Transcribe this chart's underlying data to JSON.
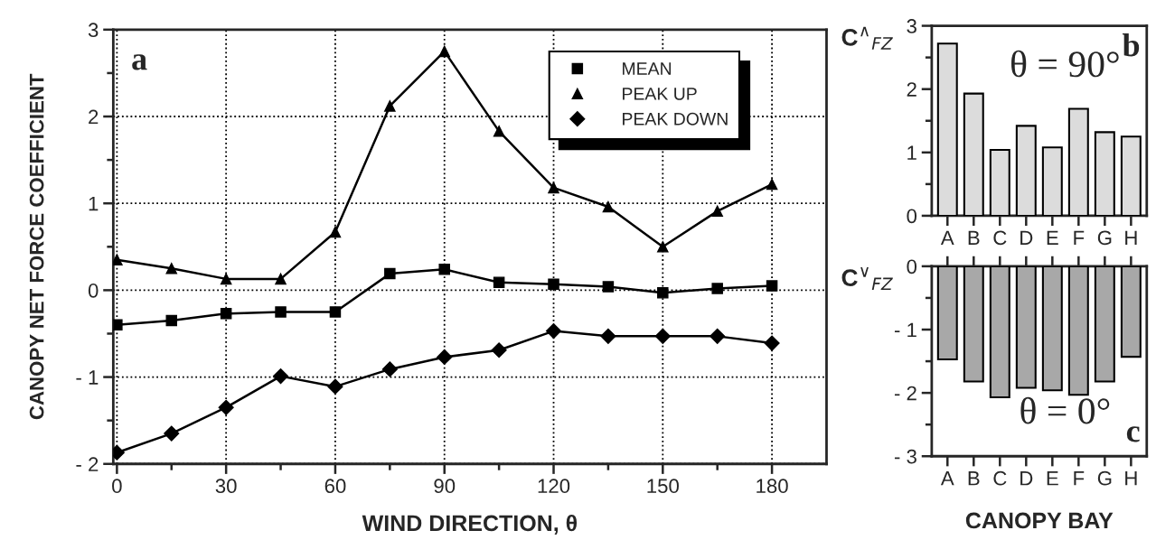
{
  "chart_data": [
    {
      "type": "line",
      "xlabel": "WIND DIRECTION, θ",
      "ylabel": "CANOPY NET FORCE COEFFICIENT",
      "x": [
        0,
        15,
        30,
        45,
        60,
        75,
        90,
        105,
        120,
        135,
        150,
        165,
        180
      ],
      "series": [
        {
          "name": "MEAN",
          "color": "#000000",
          "marker": "square",
          "values": [
            -0.4,
            -0.35,
            -0.27,
            -0.25,
            -0.25,
            0.19,
            0.24,
            0.09,
            0.07,
            0.04,
            -0.03,
            0.02,
            0.05
          ]
        },
        {
          "name": "PEAK UP",
          "color": "#000000",
          "marker": "triangle",
          "values": [
            0.35,
            0.25,
            0.13,
            0.13,
            0.67,
            2.12,
            2.75,
            1.83,
            1.18,
            0.96,
            0.5,
            0.91,
            1.22
          ]
        },
        {
          "name": "PEAK DOWN",
          "color": "#000000",
          "marker": "diamond",
          "values": [
            -1.87,
            -1.65,
            -1.35,
            -0.99,
            -1.11,
            -0.91,
            -0.77,
            -0.69,
            -0.47,
            -0.53,
            -0.53,
            -0.53,
            -0.61
          ]
        }
      ],
      "xlim": [
        -1,
        195
      ],
      "xticks": [
        0,
        {
          "value": 15,
          "label": null
        },
        30,
        {
          "value": 45,
          "label": null
        },
        60,
        {
          "value": 75,
          "label": null
        },
        90,
        {
          "value": 105,
          "label": null
        },
        120,
        {
          "value": 135,
          "label": null
        },
        150,
        {
          "value": 165,
          "label": null
        },
        180
      ],
      "ylim": [
        -2,
        3
      ],
      "yticks": [
        {
          "value": -2,
          "label": "- 2"
        },
        {
          "value": -1.5,
          "label": null
        },
        {
          "value": -1,
          "label": "- 1"
        },
        {
          "value": -0.5,
          "label": null
        },
        0,
        {
          "value": 0.5,
          "label": null
        },
        1,
        {
          "value": 1.5,
          "label": null
        },
        2,
        {
          "value": 2.5,
          "label": null
        },
        3
      ],
      "grid": true,
      "line_style": "solid",
      "legend": "top right",
      "annotations": [
        "a"
      ]
    },
    {
      "type": "bar",
      "ylabel": "C$^{∧}$$_{FZ}$",
      "categories": [
        "A",
        "B",
        "C",
        "D",
        "E",
        "F",
        "G",
        "H"
      ],
      "color": "#dcdcdc",
      "values": [
        2.72,
        1.93,
        1.04,
        1.42,
        1.08,
        1.69,
        1.32,
        1.25
      ],
      "ylim": [
        0,
        3
      ],
      "yticks": [
        0,
        {
          "value": 0.5,
          "label": null
        },
        1,
        {
          "value": 1.5,
          "label": null
        },
        2,
        {
          "value": 2.5,
          "label": null
        },
        3
      ],
      "annotations": [
        "b",
        "θ = 90°"
      ]
    },
    {
      "type": "bar",
      "ylabel": "C$^{∨}$$_{FZ}$",
      "xlabel": "CANOPY BAY",
      "categories": [
        "A",
        "B",
        "C",
        "D",
        "E",
        "F",
        "G",
        "H"
      ],
      "color": "#a8a8a8",
      "values": [
        -1.47,
        -1.82,
        -2.07,
        -1.92,
        -1.96,
        -2.03,
        -1.82,
        -1.43
      ],
      "ylim": [
        -3,
        0
      ],
      "yticks": [
        {
          "value": -3,
          "label": "- 3"
        },
        {
          "value": -2.5,
          "label": null
        },
        {
          "value": -2,
          "label": "- 2"
        },
        {
          "value": -1.5,
          "label": null
        },
        {
          "value": -1,
          "label": "- 1"
        },
        {
          "value": -0.5,
          "label": null
        },
        0
      ],
      "annotations": [
        "c",
        "θ = 0°"
      ]
    }
  ]
}
